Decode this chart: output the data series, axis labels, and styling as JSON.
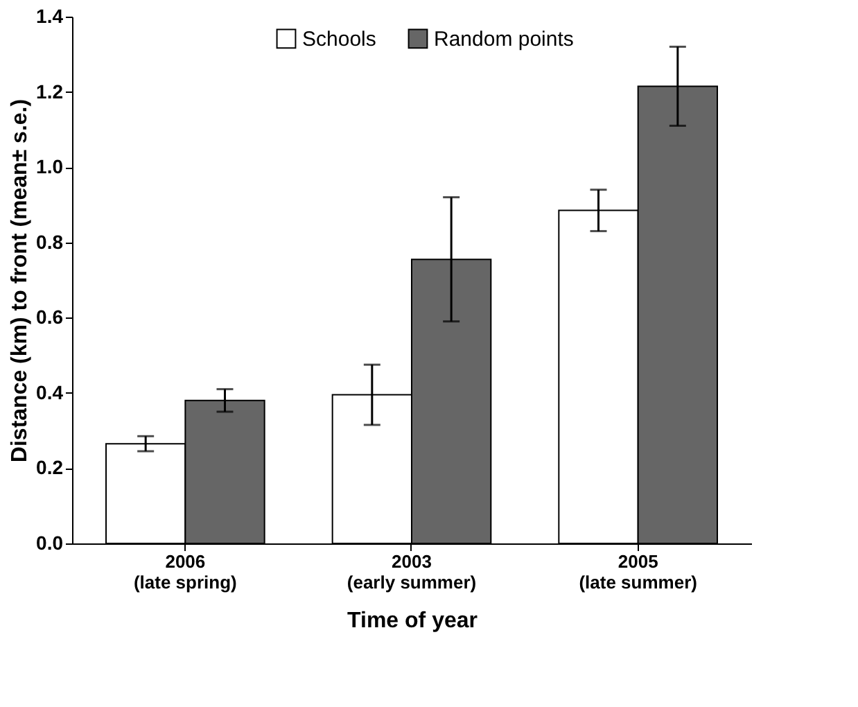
{
  "chart_data": {
    "type": "bar",
    "xlabel": "Time of year",
    "ylabel": "Distance (km) to front (mean± s.e.)",
    "categories": [
      "2006\n(late spring)",
      "2003\n(early summer)",
      "2005\n(late summer)"
    ],
    "series": [
      {
        "name": "Schools",
        "color": "#ffffff",
        "values": [
          0.265,
          0.395,
          0.885
        ],
        "errors": [
          0.02,
          0.08,
          0.055
        ]
      },
      {
        "name": "Random points",
        "color": "#666666",
        "values": [
          0.38,
          0.755,
          1.215
        ],
        "errors": [
          0.03,
          0.165,
          0.105
        ]
      }
    ],
    "ylim": [
      0,
      1.4
    ],
    "yticks": [
      {
        "value": 0,
        "label": "0.0"
      },
      {
        "value": 0.2,
        "label": "0.2"
      },
      {
        "value": 0.4,
        "label": "0.4"
      },
      {
        "value": 0.6,
        "label": "0.6"
      },
      {
        "value": 0.8,
        "label": "0.8"
      },
      {
        "value": 1.0,
        "label": "1.0"
      },
      {
        "value": 1.2,
        "label": "1.2"
      },
      {
        "value": 1.4,
        "label": "1.4"
      }
    ],
    "grid": false,
    "legend": "top"
  }
}
